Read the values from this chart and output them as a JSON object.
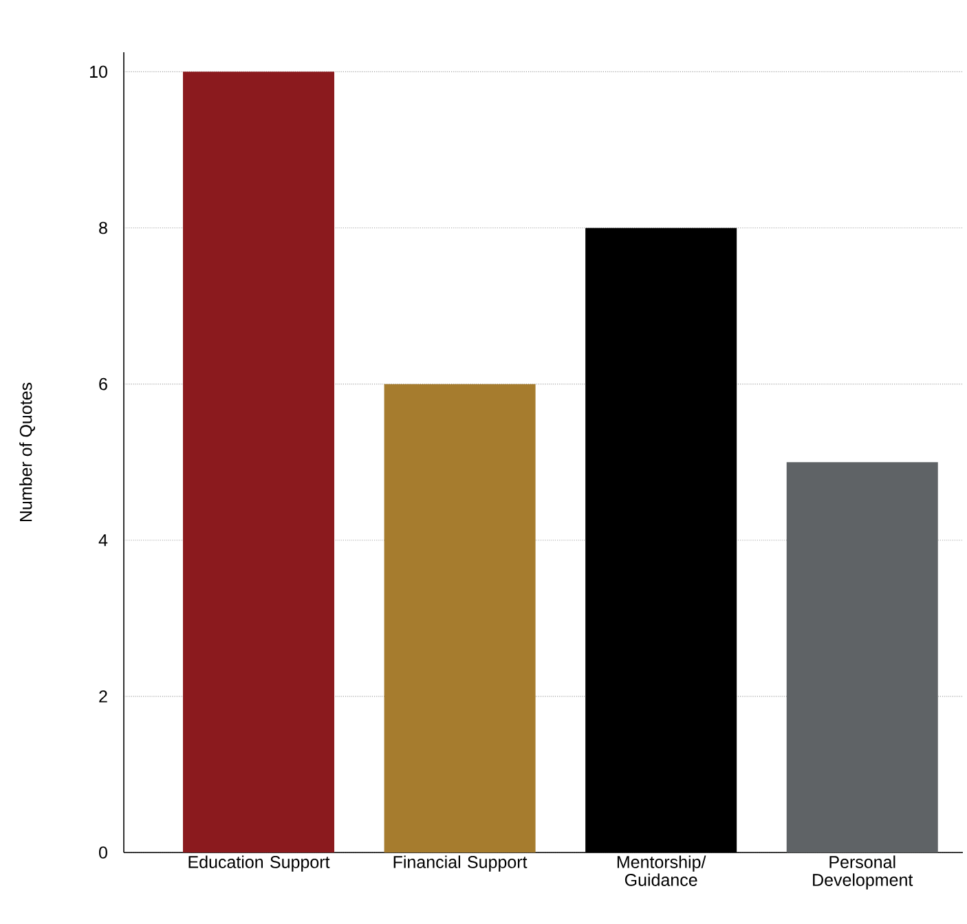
{
  "chart_data": {
    "type": "bar",
    "ylabel": "Number of Quotes",
    "categories": [
      "Education Support",
      "Financial Support",
      "Mentorship/ Guidance",
      "Personal Development"
    ],
    "values": [
      10,
      6,
      8,
      5
    ],
    "colors": [
      "#8b1a1e",
      "#a67c2e",
      "#000000",
      "#5f6366"
    ],
    "ylim": [
      0,
      10.25
    ],
    "yticks": [
      0,
      2,
      4,
      6,
      8,
      10
    ],
    "grid": "y"
  }
}
